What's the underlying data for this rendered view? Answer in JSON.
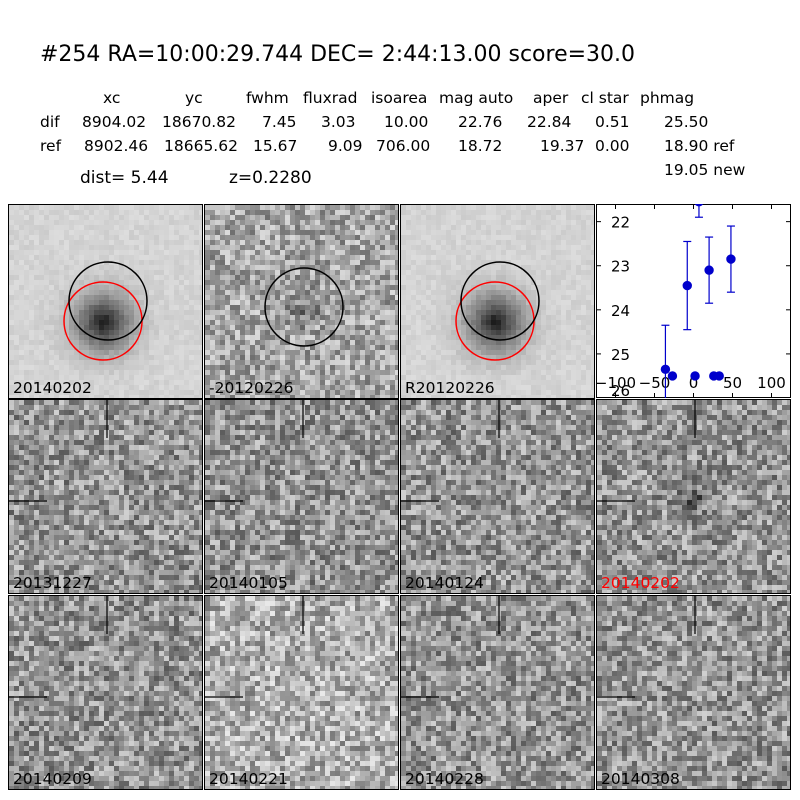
{
  "header": {
    "title": "#254   RA=10:00:29.744 DEC= 2:44:13.00      score=30.0"
  },
  "table": {
    "columns": [
      "xc",
      "yc",
      "fwhm",
      "fluxrad",
      "isoarea",
      "mag auto",
      "aper",
      "cl star",
      "phmag"
    ],
    "rows": [
      {
        "name": "dif",
        "values": [
          "8904.02",
          "18670.82",
          "7.45",
          "3.03",
          "10.00",
          "22.76",
          "22.84",
          "0.51",
          "25.50"
        ]
      },
      {
        "name": "ref",
        "values": [
          "8902.46",
          "18665.62",
          "15.67",
          "9.09",
          "706.00",
          "18.72",
          "19.37",
          "0.00",
          "18.90 ref"
        ]
      }
    ],
    "extra_phmag": "19.05 new"
  },
  "dist_line": {
    "dist": "dist=  5.44",
    "z": "z=0.2280"
  },
  "panels": [
    {
      "label": "20140202",
      "type": "galaxy",
      "circles": [
        "red",
        "black"
      ]
    },
    {
      "label": "-20120226",
      "type": "diff",
      "circles": [
        "black"
      ]
    },
    {
      "label": "R20120226",
      "type": "galaxy",
      "circles": [
        "red",
        "black"
      ]
    },
    {
      "label": "20131227",
      "type": "noise"
    },
    {
      "label": "20140105",
      "type": "noise"
    },
    {
      "label": "20140124",
      "type": "noise"
    },
    {
      "label": "20140202",
      "type": "noise",
      "highlight": "#ff0000"
    },
    {
      "label": "20140209",
      "type": "noise"
    },
    {
      "label": "20140221",
      "type": "noise"
    },
    {
      "label": "20140228",
      "type": "noise"
    },
    {
      "label": "20140308",
      "type": "noise"
    }
  ],
  "chart_data": {
    "type": "scatter",
    "title": "",
    "xlabel": "",
    "ylabel": "",
    "xlim": [
      -125,
      125
    ],
    "ylim": [
      26,
      21.6
    ],
    "y_inverted": true,
    "xticks": [
      -100,
      -50,
      0,
      50,
      100
    ],
    "xtick_labels": [
      "−100",
      "−50",
      "0",
      "50",
      "100"
    ],
    "yticks": [
      22,
      23,
      24,
      25,
      26
    ],
    "ytick_labels": [
      "22",
      "23",
      "24",
      "25",
      "26"
    ],
    "grid": false,
    "color": "#0000cc",
    "points": [
      {
        "x": -36,
        "y": 25.35,
        "yerr": 1.0
      },
      {
        "x": -27,
        "y": 25.5,
        "yerr": 0
      },
      {
        "x": -8,
        "y": 23.45,
        "yerr": 1.0
      },
      {
        "x": 2,
        "y": 25.5,
        "yerr": 0
      },
      {
        "x": 7,
        "y": 21.55,
        "yerr": 0.35
      },
      {
        "x": 20,
        "y": 23.1,
        "yerr": 0.75
      },
      {
        "x": 26,
        "y": 25.5,
        "yerr": 0
      },
      {
        "x": 33,
        "y": 25.5,
        "yerr": 0
      },
      {
        "x": 48,
        "y": 22.85,
        "yerr": 0.75
      }
    ]
  }
}
